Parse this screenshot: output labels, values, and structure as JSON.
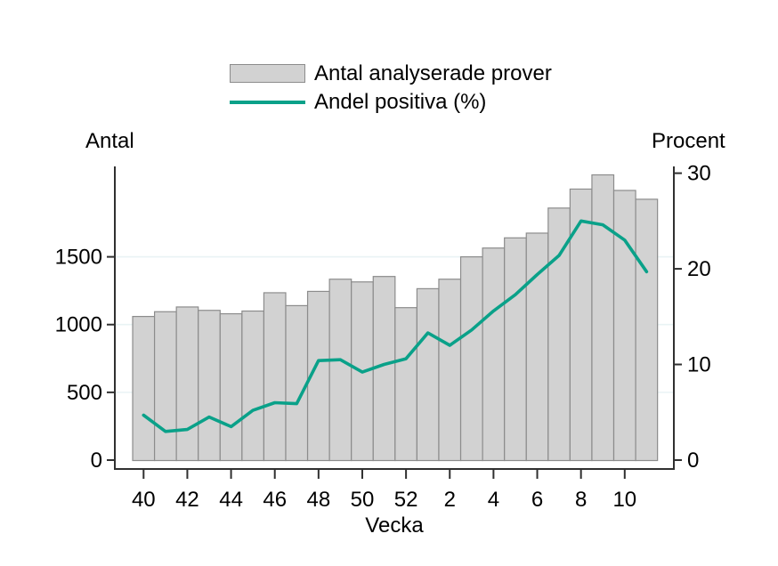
{
  "legend": {
    "items": [
      {
        "label": "Antal analyserade prover",
        "swatch": "bar"
      },
      {
        "label": "Andel positiva (%)",
        "swatch": "line"
      }
    ]
  },
  "axes": {
    "left_title": "Antal",
    "right_title": "Procent",
    "x_title": "Vecka"
  },
  "colors": {
    "bar_fill": "#d2d2d2",
    "bar_border": "#8c8c8c",
    "line": "#0aa189",
    "axis": "#303030",
    "gridline": "#e9f3f5",
    "text": "#000000"
  },
  "chart_data": {
    "type": "combo-bar-line",
    "title": "",
    "xlabel": "Vecka",
    "categories": [
      "40",
      "41",
      "42",
      "43",
      "44",
      "45",
      "46",
      "47",
      "48",
      "49",
      "50",
      "51",
      "52",
      "1",
      "2",
      "3",
      "4",
      "5",
      "6",
      "7",
      "8",
      "9",
      "10",
      "11"
    ],
    "x_tick_labels": [
      "40",
      "42",
      "44",
      "46",
      "48",
      "50",
      "52",
      "2",
      "4",
      "6",
      "8",
      "10"
    ],
    "series": [
      {
        "name": "Antal analyserade prover",
        "type": "bar",
        "axis": "left",
        "values": [
          1060,
          1095,
          1130,
          1105,
          1080,
          1100,
          1235,
          1140,
          1245,
          1335,
          1315,
          1355,
          1125,
          1265,
          1335,
          1500,
          1565,
          1640,
          1675,
          1860,
          2000,
          2105,
          1990,
          1925
        ]
      },
      {
        "name": "Andel positiva (%)",
        "type": "line",
        "axis": "right",
        "values": [
          4.7,
          3.0,
          3.2,
          4.5,
          3.5,
          5.2,
          6.0,
          5.9,
          10.4,
          10.5,
          9.2,
          10.0,
          10.6,
          13.3,
          12.0,
          13.6,
          15.6,
          17.3,
          19.4,
          21.4,
          25.0,
          24.6,
          23.0,
          19.7
        ]
      }
    ],
    "left_axis": {
      "title": "Antal",
      "ticks": [
        0,
        500,
        1000,
        1500
      ],
      "range": [
        0,
        2180
      ]
    },
    "right_axis": {
      "title": "Procent",
      "ticks": [
        0,
        10,
        20,
        30
      ],
      "range": [
        0,
        30.9
      ]
    },
    "grid": true,
    "legend_position": "top"
  }
}
